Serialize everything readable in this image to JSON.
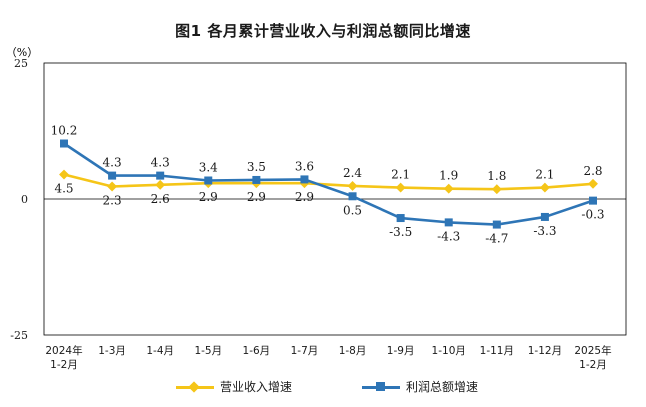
{
  "title": "图1  各月累计营业收入与利润总额同比增速",
  "colors": {
    "revenue": "#F5C518",
    "profit": "#2E75B6",
    "frame": "#000000",
    "text": "#1a1a1a"
  },
  "chart_data": {
    "type": "line",
    "ylabel": "（%）",
    "ylim": [
      -25,
      25
    ],
    "yticks": [
      "25",
      "0",
      "-25"
    ],
    "categories": [
      [
        "2024年",
        "1-2月"
      ],
      [
        "1-3月"
      ],
      [
        "1-4月"
      ],
      [
        "1-5月"
      ],
      [
        "1-6月"
      ],
      [
        "1-7月"
      ],
      [
        "1-8月"
      ],
      [
        "1-9月"
      ],
      [
        "1-10月"
      ],
      [
        "1-11月"
      ],
      [
        "1-12月"
      ],
      [
        "2025年",
        "1-2月"
      ]
    ],
    "series": [
      {
        "name": "营业收入增速",
        "marker": "diamond",
        "values": [
          4.5,
          2.3,
          2.6,
          2.9,
          2.9,
          2.9,
          2.4,
          2.1,
          1.9,
          1.8,
          2.1,
          2.8
        ],
        "labels": [
          "4.5",
          "2.3",
          "2.6",
          "2.9",
          "2.9",
          "2.9",
          "2.4",
          "2.1",
          "1.9",
          "1.8",
          "2.1",
          "2.8"
        ],
        "label_side": [
          "below",
          "below",
          "below",
          "below",
          "below",
          "below",
          "above",
          "above",
          "above",
          "above",
          "above",
          "above"
        ]
      },
      {
        "name": "利润总额增速",
        "marker": "square",
        "values": [
          10.2,
          4.3,
          4.3,
          3.4,
          3.5,
          3.6,
          0.5,
          -3.5,
          -4.3,
          -4.7,
          -3.3,
          -0.3
        ],
        "labels": [
          "10.2",
          "4.3",
          "4.3",
          "3.4",
          "3.5",
          "3.6",
          "0.5",
          "-3.5",
          "-4.3",
          "-4.7",
          "-3.3",
          "-0.3"
        ],
        "label_side": [
          "above",
          "above",
          "above",
          "above",
          "above",
          "above",
          "below",
          "below",
          "below",
          "below",
          "below",
          "below"
        ]
      }
    ],
    "grid": false,
    "legend_position": "bottom"
  }
}
